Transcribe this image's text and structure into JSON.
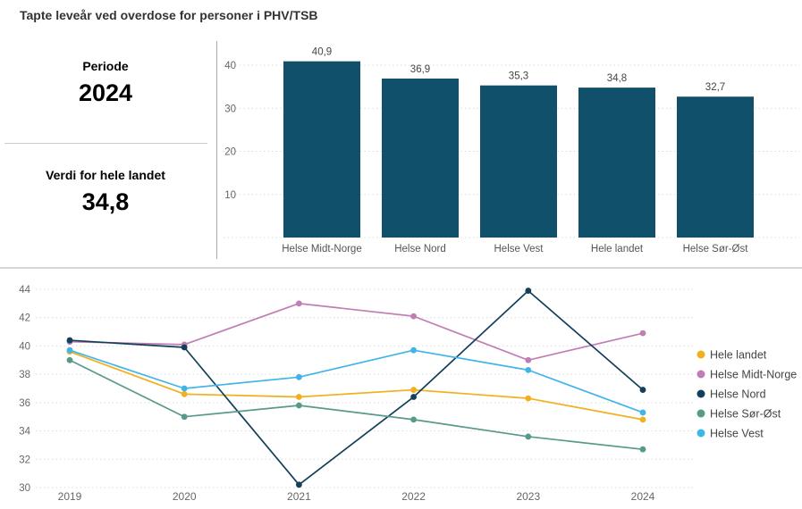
{
  "header": {
    "title": "Tapte leveår ved overdose for personer i PHV/TSB"
  },
  "stats": {
    "periode_label": "Periode",
    "periode_value": "2024",
    "verdi_label": "Verdi for hele landet",
    "verdi_value": "34,8"
  },
  "colors": {
    "bar_fill": "#11506B",
    "grid_line": "#dcdcdc",
    "axis_text": "#666666",
    "value_label_text": "#444444",
    "legend_text": "#444444",
    "divider": "#d6d6d6"
  },
  "chart_data": [
    {
      "id": "bar-by-region",
      "type": "bar",
      "categories": [
        "Helse Midt-Norge",
        "Helse Nord",
        "Helse Vest",
        "Hele landet",
        "Helse Sør-Øst"
      ],
      "values": [
        40.9,
        36.9,
        35.3,
        34.8,
        32.7
      ],
      "value_labels": [
        "40,9",
        "36,9",
        "35,3",
        "34,8",
        "32,7"
      ],
      "yticks": [
        10,
        20,
        30,
        40
      ],
      "ylim": [
        0,
        44
      ],
      "grid": true,
      "legend_position": "none"
    },
    {
      "id": "line-by-year",
      "type": "line",
      "x": [
        "2019",
        "2020",
        "2021",
        "2022",
        "2023",
        "2024"
      ],
      "series": [
        {
          "name": "Hele landet",
          "color": "#F2AF1E",
          "values": [
            39.6,
            36.6,
            36.4,
            36.9,
            36.3,
            34.8
          ]
        },
        {
          "name": "Helse Midt-Norge",
          "color": "#C07FB4",
          "values": [
            40.3,
            40.1,
            43.0,
            42.1,
            39.0,
            40.9
          ]
        },
        {
          "name": "Helse Nord",
          "color": "#123F5A",
          "values": [
            40.4,
            39.9,
            30.2,
            36.4,
            43.9,
            36.9
          ]
        },
        {
          "name": "Helse Sør-Øst",
          "color": "#57998B",
          "values": [
            39.0,
            35.0,
            35.8,
            34.8,
            33.6,
            32.7
          ]
        },
        {
          "name": "Helse Vest",
          "color": "#41B5E8",
          "values": [
            39.7,
            37.0,
            37.8,
            39.7,
            38.3,
            35.3
          ]
        }
      ],
      "yticks": [
        30,
        32,
        34,
        36,
        38,
        40,
        42,
        44
      ],
      "ylim": [
        29,
        45
      ],
      "grid": true,
      "legend_position": "right"
    }
  ]
}
